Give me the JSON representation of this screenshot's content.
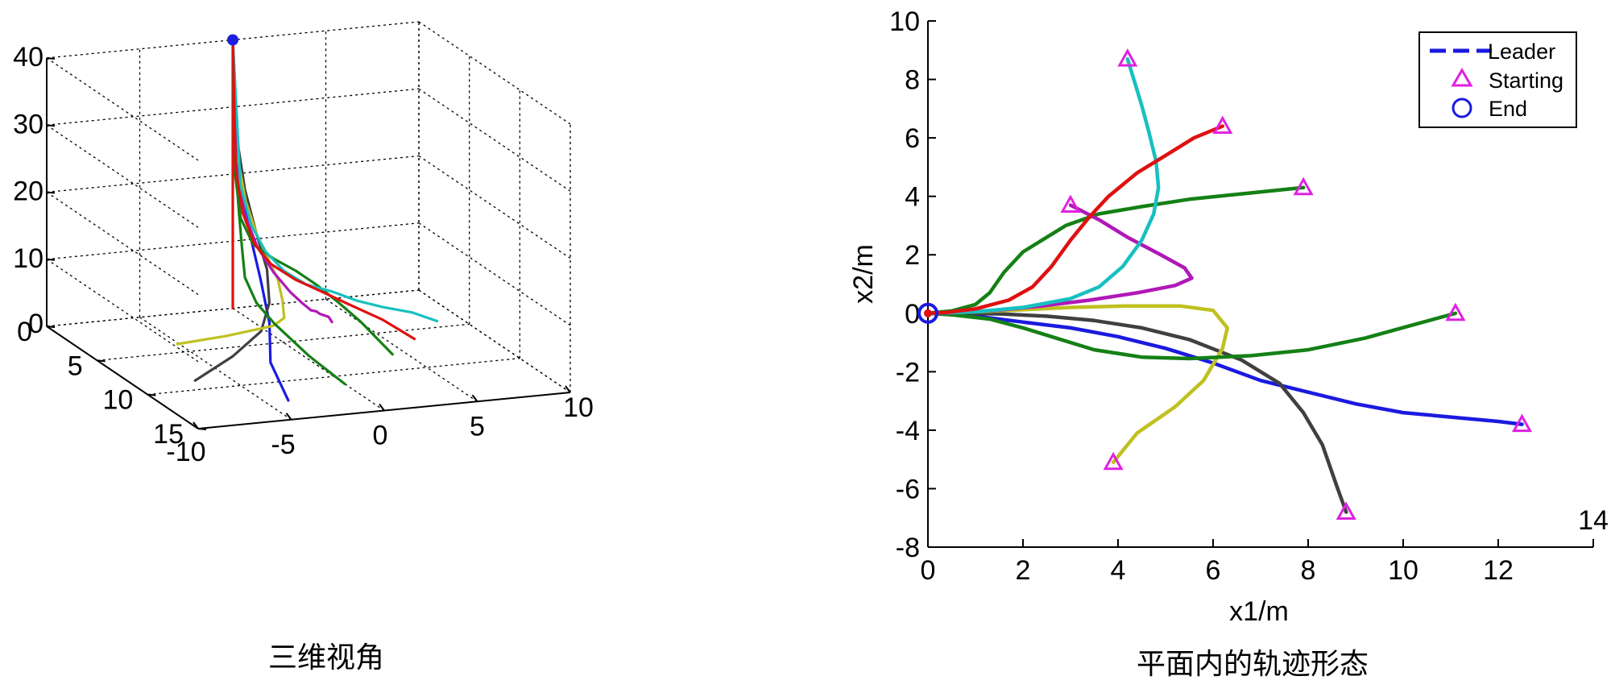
{
  "chart_data": [
    {
      "type": "line3d",
      "caption": "三维视角",
      "axis_x": {
        "range": [
          -10,
          10
        ],
        "ticks": [
          "-10",
          "-5",
          "0",
          "5",
          "10"
        ]
      },
      "axis_y": {
        "range": [
          0,
          15
        ],
        "ticks": [
          "0",
          "5",
          "10",
          "15"
        ]
      },
      "axis_z": {
        "range": [
          0,
          40
        ],
        "ticks": [
          "0",
          "10",
          "20",
          "30",
          "40"
        ]
      },
      "grid": true,
      "end_point": {
        "x": 0,
        "y": 0,
        "z": 40,
        "color": "#1f1fe0"
      },
      "series": [
        {
          "color": "#e01010",
          "points": [
            [
              0,
              0,
              0
            ],
            [
              0,
              0,
              40
            ]
          ]
        },
        {
          "color": "#1a1ae0",
          "points": [
            [
              12.5,
              -3.8,
              0
            ],
            [
              10,
              -3.4,
              3
            ],
            [
              7.5,
              -2.1,
              6
            ],
            [
              5,
              -1.2,
              9.5
            ],
            [
              3,
              -0.6,
              13
            ],
            [
              1.5,
              -0.25,
              18
            ],
            [
              0.6,
              -0.08,
              24
            ],
            [
              0,
              0,
              40
            ]
          ]
        },
        {
          "color": "#404040",
          "points": [
            [
              8.8,
              -6.8,
              0
            ],
            [
              8.3,
              -4.5,
              2.5
            ],
            [
              7.6,
              -2.6,
              5
            ],
            [
              6.2,
              -1.4,
              7.5
            ],
            [
              4.5,
              -0.6,
              10.5
            ],
            [
              2.7,
              -0.2,
              14
            ],
            [
              1.3,
              -0.05,
              19
            ],
            [
              0.5,
              0,
              25
            ],
            [
              0,
              0,
              40
            ]
          ]
        },
        {
          "color": "#c0c020",
          "points": [
            [
              3.9,
              -5.1,
              0
            ],
            [
              5.2,
              -3.2,
              2
            ],
            [
              6.2,
              -1.2,
              4
            ],
            [
              6.2,
              -0.6,
              5
            ],
            [
              5.3,
              -0.2,
              6.5
            ],
            [
              4.2,
              0.15,
              8.5
            ],
            [
              3,
              0.25,
              10.5
            ],
            [
              2,
              0.2,
              13
            ],
            [
              1.1,
              0.1,
              17
            ],
            [
              0.4,
              0.03,
              23
            ],
            [
              0,
              0,
              40
            ]
          ]
        },
        {
          "color": "#158015",
          "points": [
            [
              11.1,
              0,
              0
            ],
            [
              9.2,
              -0.9,
              2.5
            ],
            [
              6.8,
              -1.45,
              5
            ],
            [
              5.2,
              -1.55,
              6.5
            ],
            [
              3.5,
              -1.25,
              8.5
            ],
            [
              2,
              -0.6,
              11.5
            ],
            [
              1,
              -0.2,
              15
            ],
            [
              0.3,
              -0.03,
              22
            ],
            [
              0,
              0,
              40
            ]
          ]
        },
        {
          "color": "#158015",
          "points": [
            [
              7.9,
              4.3,
              0
            ],
            [
              5.5,
              3.9,
              2.5
            ],
            [
              4,
              3.5,
              4
            ],
            [
              2.8,
              3,
              5.5
            ],
            [
              2,
              2.3,
              7
            ],
            [
              1.5,
              1.4,
              8.5
            ],
            [
              1.1,
              0.5,
              10.5
            ],
            [
              0.6,
              0.1,
              14
            ],
            [
              0.2,
              0.02,
              20
            ],
            [
              0,
              0,
              40
            ]
          ]
        },
        {
          "color": "#b018b8",
          "points": [
            [
              3,
              3.7,
              0
            ],
            [
              3.6,
              3.2,
              1.5
            ],
            [
              4.4,
              2.3,
              3
            ],
            [
              5.3,
              1.6,
              4.5
            ],
            [
              5.55,
              1.2,
              5
            ],
            [
              5.2,
              0.95,
              5.7
            ],
            [
              4.4,
              0.7,
              6.7
            ],
            [
              3.2,
              0.45,
              8.5
            ],
            [
              2,
              0.25,
              11
            ],
            [
              1,
              0.1,
              15
            ],
            [
              0.3,
              0.02,
              22
            ],
            [
              0,
              0,
              40
            ]
          ]
        },
        {
          "color": "#18c0c0",
          "points": [
            [
              4.2,
              8.7,
              0
            ],
            [
              4.5,
              7.2,
              2
            ],
            [
              4.75,
              5.5,
              3.5
            ],
            [
              4.85,
              4,
              5
            ],
            [
              4.7,
              2.8,
              6.5
            ],
            [
              4.3,
              1.6,
              7.5
            ],
            [
              3.6,
              0.8,
              9
            ],
            [
              2.6,
              0.35,
              11
            ],
            [
              1.6,
              0.12,
              14
            ],
            [
              0.7,
              0.03,
              19
            ],
            [
              0,
              0,
              40
            ]
          ]
        },
        {
          "color": "#e01010",
          "points": [
            [
              6.2,
              6.4,
              0
            ],
            [
              5,
              5.3,
              2
            ],
            [
              4,
              4.1,
              3.5
            ],
            [
              3.3,
              3,
              5
            ],
            [
              2.7,
              1.9,
              6.5
            ],
            [
              2.1,
              0.9,
              8.5
            ],
            [
              1.5,
              0.35,
              11
            ],
            [
              0.8,
              0.1,
              15
            ],
            [
              0.25,
              0.02,
              21
            ],
            [
              0,
              0,
              40
            ]
          ]
        }
      ]
    },
    {
      "type": "line",
      "caption": "平面内的轨迹形态",
      "xlabel": "x1/m",
      "ylabel": "x2/m",
      "xlim": [
        0,
        14
      ],
      "ylim": [
        -8,
        10
      ],
      "xticks": [
        0,
        2,
        4,
        6,
        8,
        10,
        12,
        14
      ],
      "yticks": [
        -8,
        -6,
        -4,
        -2,
        0,
        2,
        4,
        6,
        8,
        10
      ],
      "legend": {
        "placement": "top-right",
        "entries": [
          {
            "label": "Leader",
            "marker": "dashed-line",
            "color": "#1a1ae0"
          },
          {
            "label": "Starting",
            "marker": "triangle",
            "color": "#e020e0"
          },
          {
            "label": "End",
            "marker": "circle",
            "color": "#1a1ae0"
          }
        ]
      },
      "start_marker_color": "#e020e0",
      "end_point": {
        "x": 0,
        "y": 0,
        "color": "#1a1ae0"
      },
      "series": [
        {
          "color": "#1a1ae0",
          "points": [
            [
              12.5,
              -3.8
            ],
            [
              12,
              -3.7
            ],
            [
              11,
              -3.55
            ],
            [
              10,
              -3.4
            ],
            [
              9,
              -3.1
            ],
            [
              8,
              -2.7
            ],
            [
              7,
              -2.3
            ],
            [
              6,
              -1.7
            ],
            [
              5,
              -1.2
            ],
            [
              4,
              -0.8
            ],
            [
              3,
              -0.5
            ],
            [
              2,
              -0.3
            ],
            [
              1,
              -0.1
            ],
            [
              0,
              0
            ]
          ]
        },
        {
          "color": "#404040",
          "points": [
            [
              8.8,
              -6.8
            ],
            [
              8.6,
              -5.9
            ],
            [
              8.3,
              -4.5
            ],
            [
              7.9,
              -3.4
            ],
            [
              7.4,
              -2.4
            ],
            [
              6.6,
              -1.6
            ],
            [
              5.5,
              -0.9
            ],
            [
              4.5,
              -0.5
            ],
            [
              3.5,
              -0.25
            ],
            [
              2.5,
              -0.1
            ],
            [
              1.5,
              -0.02
            ],
            [
              0.5,
              0
            ],
            [
              0,
              0
            ]
          ]
        },
        {
          "color": "#c0c020",
          "points": [
            [
              3.9,
              -5.1
            ],
            [
              4.4,
              -4.1
            ],
            [
              5.2,
              -3.2
            ],
            [
              5.8,
              -2.3
            ],
            [
              6.2,
              -1.2
            ],
            [
              6.3,
              -0.5
            ],
            [
              6,
              0.1
            ],
            [
              5.3,
              0.25
            ],
            [
              4.2,
              0.25
            ],
            [
              3,
              0.2
            ],
            [
              2,
              0.12
            ],
            [
              1,
              0.05
            ],
            [
              0,
              0
            ]
          ]
        },
        {
          "color": "#158015",
          "points": [
            [
              11.1,
              0
            ],
            [
              10.2,
              -0.4
            ],
            [
              9.2,
              -0.85
            ],
            [
              8,
              -1.25
            ],
            [
              6.8,
              -1.45
            ],
            [
              5.5,
              -1.55
            ],
            [
              4.5,
              -1.5
            ],
            [
              3.5,
              -1.25
            ],
            [
              2.6,
              -0.8
            ],
            [
              2,
              -0.5
            ],
            [
              1.3,
              -0.2
            ],
            [
              0.5,
              -0.05
            ],
            [
              0,
              0
            ]
          ]
        },
        {
          "color": "#158015",
          "points": [
            [
              7.9,
              4.3
            ],
            [
              6.7,
              4.1
            ],
            [
              5.5,
              3.9
            ],
            [
              4.5,
              3.65
            ],
            [
              3.6,
              3.4
            ],
            [
              2.9,
              3
            ],
            [
              2.4,
              2.5
            ],
            [
              2,
              2.1
            ],
            [
              1.6,
              1.4
            ],
            [
              1.3,
              0.7
            ],
            [
              1,
              0.3
            ],
            [
              0.5,
              0.08
            ],
            [
              0,
              0
            ]
          ]
        },
        {
          "color": "#b018b8",
          "points": [
            [
              3,
              3.7
            ],
            [
              3.6,
              3.2
            ],
            [
              4.2,
              2.6
            ],
            [
              4.9,
              2
            ],
            [
              5.4,
              1.55
            ],
            [
              5.55,
              1.2
            ],
            [
              5.2,
              0.95
            ],
            [
              4.4,
              0.7
            ],
            [
              3.4,
              0.45
            ],
            [
              2.4,
              0.25
            ],
            [
              1.4,
              0.1
            ],
            [
              0.5,
              0.02
            ],
            [
              0,
              0
            ]
          ]
        },
        {
          "color": "#18c0c0",
          "points": [
            [
              4.2,
              8.7
            ],
            [
              4.35,
              7.9
            ],
            [
              4.5,
              7.1
            ],
            [
              4.65,
              6.2
            ],
            [
              4.8,
              5.2
            ],
            [
              4.85,
              4.3
            ],
            [
              4.75,
              3.4
            ],
            [
              4.5,
              2.5
            ],
            [
              4.1,
              1.6
            ],
            [
              3.6,
              0.9
            ],
            [
              3,
              0.5
            ],
            [
              2,
              0.2
            ],
            [
              1,
              0.05
            ],
            [
              0,
              0
            ]
          ]
        },
        {
          "color": "#e01010",
          "points": [
            [
              6.2,
              6.4
            ],
            [
              5.6,
              6
            ],
            [
              5,
              5.4
            ],
            [
              4.4,
              4.8
            ],
            [
              3.8,
              4
            ],
            [
              3.4,
              3.3
            ],
            [
              3,
              2.5
            ],
            [
              2.6,
              1.6
            ],
            [
              2.2,
              0.9
            ],
            [
              1.7,
              0.45
            ],
            [
              1,
              0.15
            ],
            [
              0.4,
              0.03
            ],
            [
              0,
              0
            ]
          ]
        }
      ]
    }
  ]
}
